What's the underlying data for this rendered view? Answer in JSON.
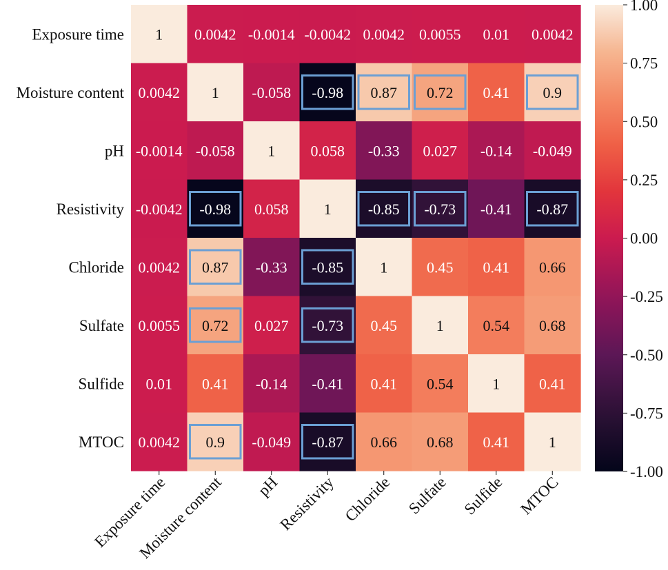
{
  "chart_data": {
    "type": "heatmap",
    "title": "",
    "row_labels": [
      "Exposure time",
      "Moisture content",
      "pH",
      "Resistivity",
      "Chloride",
      "Sulfate",
      "Sulfide",
      "MTOC"
    ],
    "col_labels": [
      "Exposure time",
      "Moisture content",
      "pH",
      "Resistivity",
      "Chloride",
      "Sulfate",
      "Sulfide",
      "MTOC"
    ],
    "values": [
      [
        1,
        0.0042,
        -0.0014,
        -0.0042,
        0.0042,
        0.0055,
        0.01,
        0.0042
      ],
      [
        0.0042,
        1,
        -0.058,
        -0.98,
        0.87,
        0.72,
        0.41,
        0.9
      ],
      [
        -0.0014,
        -0.058,
        1,
        0.058,
        -0.33,
        0.027,
        -0.14,
        -0.049
      ],
      [
        -0.0042,
        -0.98,
        0.058,
        1,
        -0.85,
        -0.73,
        -0.41,
        -0.87
      ],
      [
        0.0042,
        0.87,
        -0.33,
        -0.85,
        1,
        0.45,
        0.41,
        0.66
      ],
      [
        0.0055,
        0.72,
        0.027,
        -0.73,
        0.45,
        1,
        0.54,
        0.68
      ],
      [
        0.01,
        0.41,
        -0.14,
        -0.41,
        0.41,
        0.54,
        1,
        0.41
      ],
      [
        0.0042,
        0.9,
        -0.049,
        -0.87,
        0.66,
        0.68,
        0.41,
        1
      ]
    ],
    "value_labels": [
      [
        "1",
        "0.0042",
        "-0.0014",
        "-0.0042",
        "0.0042",
        "0.0055",
        "0.01",
        "0.0042"
      ],
      [
        "0.0042",
        "1",
        "-0.058",
        "-0.98",
        "0.87",
        "0.72",
        "0.41",
        "0.9"
      ],
      [
        "-0.0014",
        "-0.058",
        "1",
        "0.058",
        "-0.33",
        "0.027",
        "-0.14",
        "-0.049"
      ],
      [
        "-0.0042",
        "-0.98",
        "0.058",
        "1",
        "-0.85",
        "-0.73",
        "-0.41",
        "-0.87"
      ],
      [
        "0.0042",
        "0.87",
        "-0.33",
        "-0.85",
        "1",
        "0.45",
        "0.41",
        "0.66"
      ],
      [
        "0.0055",
        "0.72",
        "0.027",
        "-0.73",
        "0.45",
        "1",
        "0.54",
        "0.68"
      ],
      [
        "0.01",
        "0.41",
        "-0.14",
        "-0.41",
        "0.41",
        "0.54",
        "1",
        "0.41"
      ],
      [
        "0.0042",
        "0.9",
        "-0.049",
        "-0.87",
        "0.66",
        "0.68",
        "0.41",
        "1"
      ]
    ],
    "vmin": -1.0,
    "vmax": 1.0,
    "colorbar_ticks": [
      "1.00",
      "0.75",
      "0.50",
      "0.25",
      "0.00",
      "-0.25",
      "-0.50",
      "-0.75",
      "-1.00"
    ],
    "highlighted_cells": [
      [
        1,
        3
      ],
      [
        1,
        4
      ],
      [
        1,
        5
      ],
      [
        1,
        7
      ],
      [
        3,
        1
      ],
      [
        3,
        4
      ],
      [
        3,
        5
      ],
      [
        3,
        7
      ],
      [
        4,
        1
      ],
      [
        4,
        3
      ],
      [
        5,
        1
      ],
      [
        5,
        3
      ],
      [
        7,
        1
      ],
      [
        7,
        3
      ]
    ],
    "colormap": "rocket",
    "highlight_color": "#6b9fd4"
  }
}
